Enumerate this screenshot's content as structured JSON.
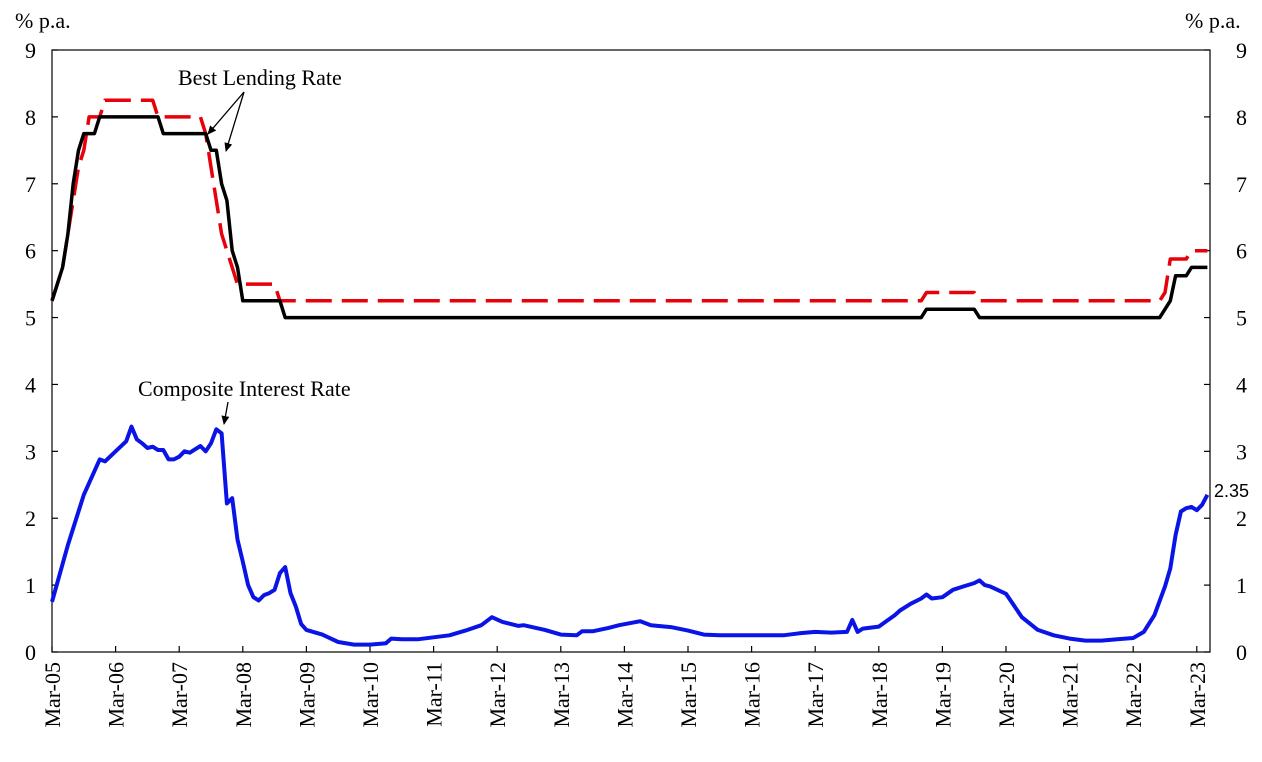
{
  "chart_data": {
    "type": "line",
    "y_unit_left": "% p.a.",
    "y_unit_right": "% p.a.",
    "ylim": [
      0,
      9
    ],
    "y_ticks": [
      "0",
      "1",
      "2",
      "3",
      "4",
      "5",
      "6",
      "7",
      "8",
      "9"
    ],
    "x_tick_labels": [
      "Mar-05",
      "Mar-06",
      "Mar-07",
      "Mar-08",
      "Mar-09",
      "Mar-10",
      "Mar-11",
      "Mar-12",
      "Mar-13",
      "Mar-14",
      "Mar-15",
      "Mar-16",
      "Mar-17",
      "Mar-18",
      "Mar-19",
      "Mar-20",
      "Mar-21",
      "Mar-22",
      "Mar-23"
    ],
    "grid": false,
    "series": [
      {
        "id": "blr_upper",
        "color": "#e8000b",
        "style": "dashed",
        "points": [
          [
            "Mar-05",
            5.25
          ],
          [
            "Apr-05",
            5.5
          ],
          [
            "May-05",
            5.75
          ],
          [
            "Jun-05",
            6.25
          ],
          [
            "Jul-05",
            6.75
          ],
          [
            "Aug-05",
            7.25
          ],
          [
            "Sep-05",
            7.5
          ],
          [
            "Oct-05",
            8.0
          ],
          [
            "Nov-05",
            8.0
          ],
          [
            "Dec-05",
            8.0
          ],
          [
            "Jan-06",
            8.25
          ],
          [
            "Oct-06",
            8.25
          ],
          [
            "Nov-06",
            8.0
          ],
          [
            "Jul-07",
            8.0
          ],
          [
            "Aug-07",
            7.75
          ],
          [
            "Sep-07",
            7.25
          ],
          [
            "Oct-07",
            6.75
          ],
          [
            "Nov-07",
            6.25
          ],
          [
            "Dec-07",
            6.0
          ],
          [
            "Feb-08",
            5.5
          ],
          [
            "Sep-08",
            5.5
          ],
          [
            "Oct-08",
            5.25
          ],
          [
            "Nov-18",
            5.25
          ],
          [
            "Dec-18",
            5.375
          ],
          [
            "Sep-19",
            5.375
          ],
          [
            "Oct-19",
            5.25
          ],
          [
            "Aug-22",
            5.25
          ],
          [
            "Sep-22",
            5.375
          ],
          [
            "Oct-22",
            5.875
          ],
          [
            "Jan-23",
            5.875
          ],
          [
            "Feb-23",
            6.0
          ],
          [
            "May-23",
            6.0
          ]
        ]
      },
      {
        "id": "blr_lower",
        "color": "#000000",
        "style": "solid",
        "points": [
          [
            "Mar-05",
            5.25
          ],
          [
            "Apr-05",
            5.5
          ],
          [
            "May-05",
            5.75
          ],
          [
            "Jun-05",
            6.25
          ],
          [
            "Jul-05",
            7.0
          ],
          [
            "Aug-05",
            7.5
          ],
          [
            "Sep-05",
            7.75
          ],
          [
            "Oct-05",
            7.75
          ],
          [
            "Nov-05",
            7.75
          ],
          [
            "Dec-05",
            8.0
          ],
          [
            "Nov-06",
            8.0
          ],
          [
            "Dec-06",
            7.75
          ],
          [
            "Aug-07",
            7.75
          ],
          [
            "Sep-07",
            7.5
          ],
          [
            "Oct-07",
            7.5
          ],
          [
            "Nov-07",
            7.0
          ],
          [
            "Dec-07",
            6.75
          ],
          [
            "Jan-08",
            6.0
          ],
          [
            "Feb-08",
            5.75
          ],
          [
            "Mar-08",
            5.25
          ],
          [
            "Oct-08",
            5.25
          ],
          [
            "Nov-08",
            5.0
          ],
          [
            "Nov-18",
            5.0
          ],
          [
            "Dec-18",
            5.125
          ],
          [
            "Sep-19",
            5.125
          ],
          [
            "Oct-19",
            5.0
          ],
          [
            "Aug-22",
            5.0
          ],
          [
            "Sep-22",
            5.125
          ],
          [
            "Oct-22",
            5.25
          ],
          [
            "Nov-22",
            5.625
          ],
          [
            "Jan-23",
            5.625
          ],
          [
            "Feb-23",
            5.75
          ],
          [
            "May-23",
            5.75
          ]
        ]
      },
      {
        "id": "composite",
        "color": "#0a14e6",
        "style": "solid",
        "points": [
          [
            "Mar-05",
            0.75
          ],
          [
            "Jun-05",
            1.6
          ],
          [
            "Sep-05",
            2.35
          ],
          [
            "Dec-05",
            2.88
          ],
          [
            "Jan-06",
            2.85
          ],
          [
            "Mar-06",
            3.0
          ],
          [
            "May-06",
            3.15
          ],
          [
            "Jun-06",
            3.37
          ],
          [
            "Jul-06",
            3.18
          ],
          [
            "Aug-06",
            3.12
          ],
          [
            "Sep-06",
            3.05
          ],
          [
            "Oct-06",
            3.07
          ],
          [
            "Nov-06",
            3.02
          ],
          [
            "Dec-06",
            3.02
          ],
          [
            "Jan-07",
            2.88
          ],
          [
            "Feb-07",
            2.88
          ],
          [
            "Mar-07",
            2.92
          ],
          [
            "Apr-07",
            3.0
          ],
          [
            "May-07",
            2.98
          ],
          [
            "Jun-07",
            3.03
          ],
          [
            "Jul-07",
            3.08
          ],
          [
            "Aug-07",
            3.0
          ],
          [
            "Sep-07",
            3.12
          ],
          [
            "Oct-07",
            3.33
          ],
          [
            "Nov-07",
            3.27
          ],
          [
            "Dec-07",
            2.22
          ],
          [
            "Jan-08",
            2.3
          ],
          [
            "Feb-08",
            1.68
          ],
          [
            "Mar-08",
            1.35
          ],
          [
            "Apr-08",
            1.0
          ],
          [
            "May-08",
            0.82
          ],
          [
            "Jun-08",
            0.77
          ],
          [
            "Jul-08",
            0.85
          ],
          [
            "Aug-08",
            0.88
          ],
          [
            "Sep-08",
            0.93
          ],
          [
            "Oct-08",
            1.18
          ],
          [
            "Nov-08",
            1.27
          ],
          [
            "Dec-08",
            0.88
          ],
          [
            "Jan-09",
            0.68
          ],
          [
            "Feb-09",
            0.42
          ],
          [
            "Mar-09",
            0.33
          ],
          [
            "Jun-09",
            0.26
          ],
          [
            "Sep-09",
            0.15
          ],
          [
            "Dec-09",
            0.11
          ],
          [
            "Mar-10",
            0.11
          ],
          [
            "Jun-10",
            0.13
          ],
          [
            "Jul-10",
            0.2
          ],
          [
            "Sep-10",
            0.19
          ],
          [
            "Dec-10",
            0.19
          ],
          [
            "Mar-11",
            0.22
          ],
          [
            "Jun-11",
            0.25
          ],
          [
            "Sep-11",
            0.32
          ],
          [
            "Dec-11",
            0.4
          ],
          [
            "Feb-12",
            0.52
          ],
          [
            "Apr-12",
            0.45
          ],
          [
            "Jun-12",
            0.41
          ],
          [
            "Jul-12",
            0.39
          ],
          [
            "Aug-12",
            0.4
          ],
          [
            "Dec-12",
            0.33
          ],
          [
            "Mar-13",
            0.26
          ],
          [
            "Jun-13",
            0.25
          ],
          [
            "Jul-13",
            0.31
          ],
          [
            "Sep-13",
            0.31
          ],
          [
            "Dec-13",
            0.36
          ],
          [
            "Feb-14",
            0.4
          ],
          [
            "Apr-14",
            0.43
          ],
          [
            "Jun-14",
            0.46
          ],
          [
            "Aug-14",
            0.4
          ],
          [
            "Dec-14",
            0.37
          ],
          [
            "Mar-15",
            0.32
          ],
          [
            "Jun-15",
            0.26
          ],
          [
            "Sep-15",
            0.25
          ],
          [
            "Dec-15",
            0.25
          ],
          [
            "Mar-16",
            0.25
          ],
          [
            "Jun-16",
            0.25
          ],
          [
            "Sep-16",
            0.25
          ],
          [
            "Dec-16",
            0.28
          ],
          [
            "Mar-17",
            0.3
          ],
          [
            "Jun-17",
            0.29
          ],
          [
            "Sep-17",
            0.3
          ],
          [
            "Oct-17",
            0.48
          ],
          [
            "Nov-17",
            0.3
          ],
          [
            "Dec-17",
            0.35
          ],
          [
            "Mar-18",
            0.38
          ],
          [
            "Jun-18",
            0.55
          ],
          [
            "Jul-18",
            0.62
          ],
          [
            "Sep-18",
            0.72
          ],
          [
            "Nov-18",
            0.8
          ],
          [
            "Dec-18",
            0.86
          ],
          [
            "Jan-19",
            0.8
          ],
          [
            "Mar-19",
            0.82
          ],
          [
            "May-19",
            0.93
          ],
          [
            "Jul-19",
            0.98
          ],
          [
            "Sep-19",
            1.03
          ],
          [
            "Oct-19",
            1.07
          ],
          [
            "Nov-19",
            1.0
          ],
          [
            "Dec-19",
            0.98
          ],
          [
            "Mar-20",
            0.87
          ],
          [
            "Jun-20",
            0.52
          ],
          [
            "Sep-20",
            0.33
          ],
          [
            "Dec-20",
            0.25
          ],
          [
            "Mar-21",
            0.2
          ],
          [
            "Jun-21",
            0.17
          ],
          [
            "Sep-21",
            0.17
          ],
          [
            "Dec-21",
            0.19
          ],
          [
            "Mar-22",
            0.21
          ],
          [
            "May-22",
            0.3
          ],
          [
            "Jul-22",
            0.55
          ],
          [
            "Sep-22",
            0.98
          ],
          [
            "Oct-22",
            1.25
          ],
          [
            "Nov-22",
            1.75
          ],
          [
            "Dec-22",
            2.1
          ],
          [
            "Jan-23",
            2.15
          ],
          [
            "Feb-23",
            2.17
          ],
          [
            "Mar-23",
            2.12
          ],
          [
            "Apr-23",
            2.2
          ],
          [
            "May-23",
            2.35
          ]
        ]
      }
    ],
    "annotations": {
      "best_lending_rate": "Best Lending Rate",
      "composite_interest_rate": "Composite Interest Rate",
      "end_value_label": "2.35"
    }
  }
}
